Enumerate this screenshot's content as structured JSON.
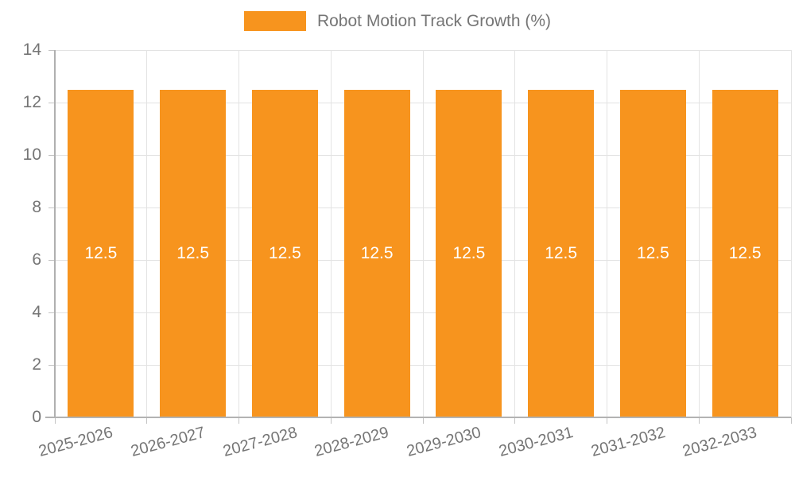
{
  "chart_data": {
    "type": "bar",
    "title": "Robot Motion Track Growth (%)",
    "categories": [
      "2025-2026",
      "2026-2027",
      "2027-2028",
      "2028-2029",
      "2029-2030",
      "2030-2031",
      "2031-2032",
      "2032-2033"
    ],
    "series": [
      {
        "name": "Robot Motion Track Growth (%)",
        "values": [
          12.5,
          12.5,
          12.5,
          12.5,
          12.5,
          12.5,
          12.5,
          12.5
        ],
        "data_labels": [
          "12.5",
          "12.5",
          "12.5",
          "12.5",
          "12.5",
          "12.5",
          "12.5",
          "12.5"
        ]
      }
    ],
    "xlabel": "",
    "ylabel": "",
    "ylim": [
      0,
      14
    ],
    "yticks": [
      0,
      2,
      4,
      6,
      8,
      10,
      12,
      14
    ],
    "grid": true,
    "legend_position": "top",
    "bar_color": "#f7941e",
    "bar_label_color": "#ffffff",
    "axis_text_color": "#757575"
  },
  "legend": {
    "label": "Robot Motion Track Growth (%)",
    "swatch_color": "#f7941e"
  }
}
